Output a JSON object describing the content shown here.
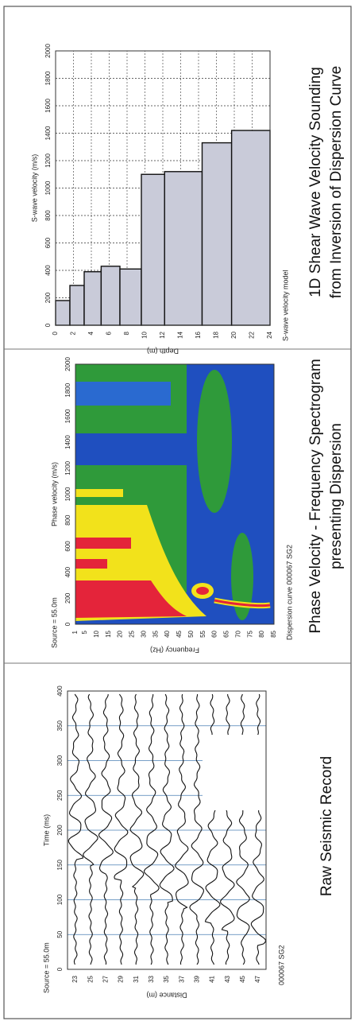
{
  "panels": [
    {
      "caption": [
        "Raw Seismic Record"
      ],
      "header": "Source = 55.0m",
      "axis_title": "Time (ms)",
      "side_title": "Distance (m)",
      "top_ticks": [
        0,
        50,
        100,
        150,
        200,
        250,
        300,
        350,
        400
      ],
      "side_ticks": [
        23,
        25,
        27,
        29,
        31,
        33,
        35,
        37,
        39,
        41,
        43,
        45,
        47
      ],
      "footer": "000067 SG2"
    },
    {
      "caption": [
        "Phase Velocity - Frequency Spectrogram",
        "presenting Dispersion"
      ],
      "header": "Source = 55.0m",
      "axis_title": "Phase velocity (m/s)",
      "side_title": "Frequency (Hz)",
      "top_ticks": [
        0,
        200,
        400,
        600,
        800,
        1000,
        1200,
        1400,
        1600,
        1800,
        2000
      ],
      "side_ticks": [
        1,
        5,
        10,
        15,
        20,
        25,
        30,
        35,
        40,
        45,
        50,
        55,
        60,
        65,
        70,
        75,
        80,
        85
      ],
      "footer": "Dispersion curve 000067 SG2"
    },
    {
      "caption": [
        "1D Shear Wave Velocity Sounding",
        "from Inversion of Dispersion Curve"
      ],
      "axis_title": "S-wave velocity (m/s)",
      "side_title": "Depth (m)",
      "top_ticks": [
        0,
        200,
        400,
        600,
        800,
        1000,
        1200,
        1400,
        1600,
        1800,
        2000
      ],
      "side_ticks": [
        0,
        2,
        4,
        6,
        8,
        10,
        12,
        14,
        16,
        18,
        20,
        22,
        24
      ],
      "footer": "S-wave velocity model",
      "profile": {
        "depth_top": [
          0,
          1.6,
          3.2,
          5.1,
          7.2,
          9.6,
          12.2,
          16.4,
          19.7
        ],
        "vs": [
          180,
          290,
          390,
          430,
          410,
          1100,
          1120,
          1330,
          1420
        ]
      }
    }
  ]
}
